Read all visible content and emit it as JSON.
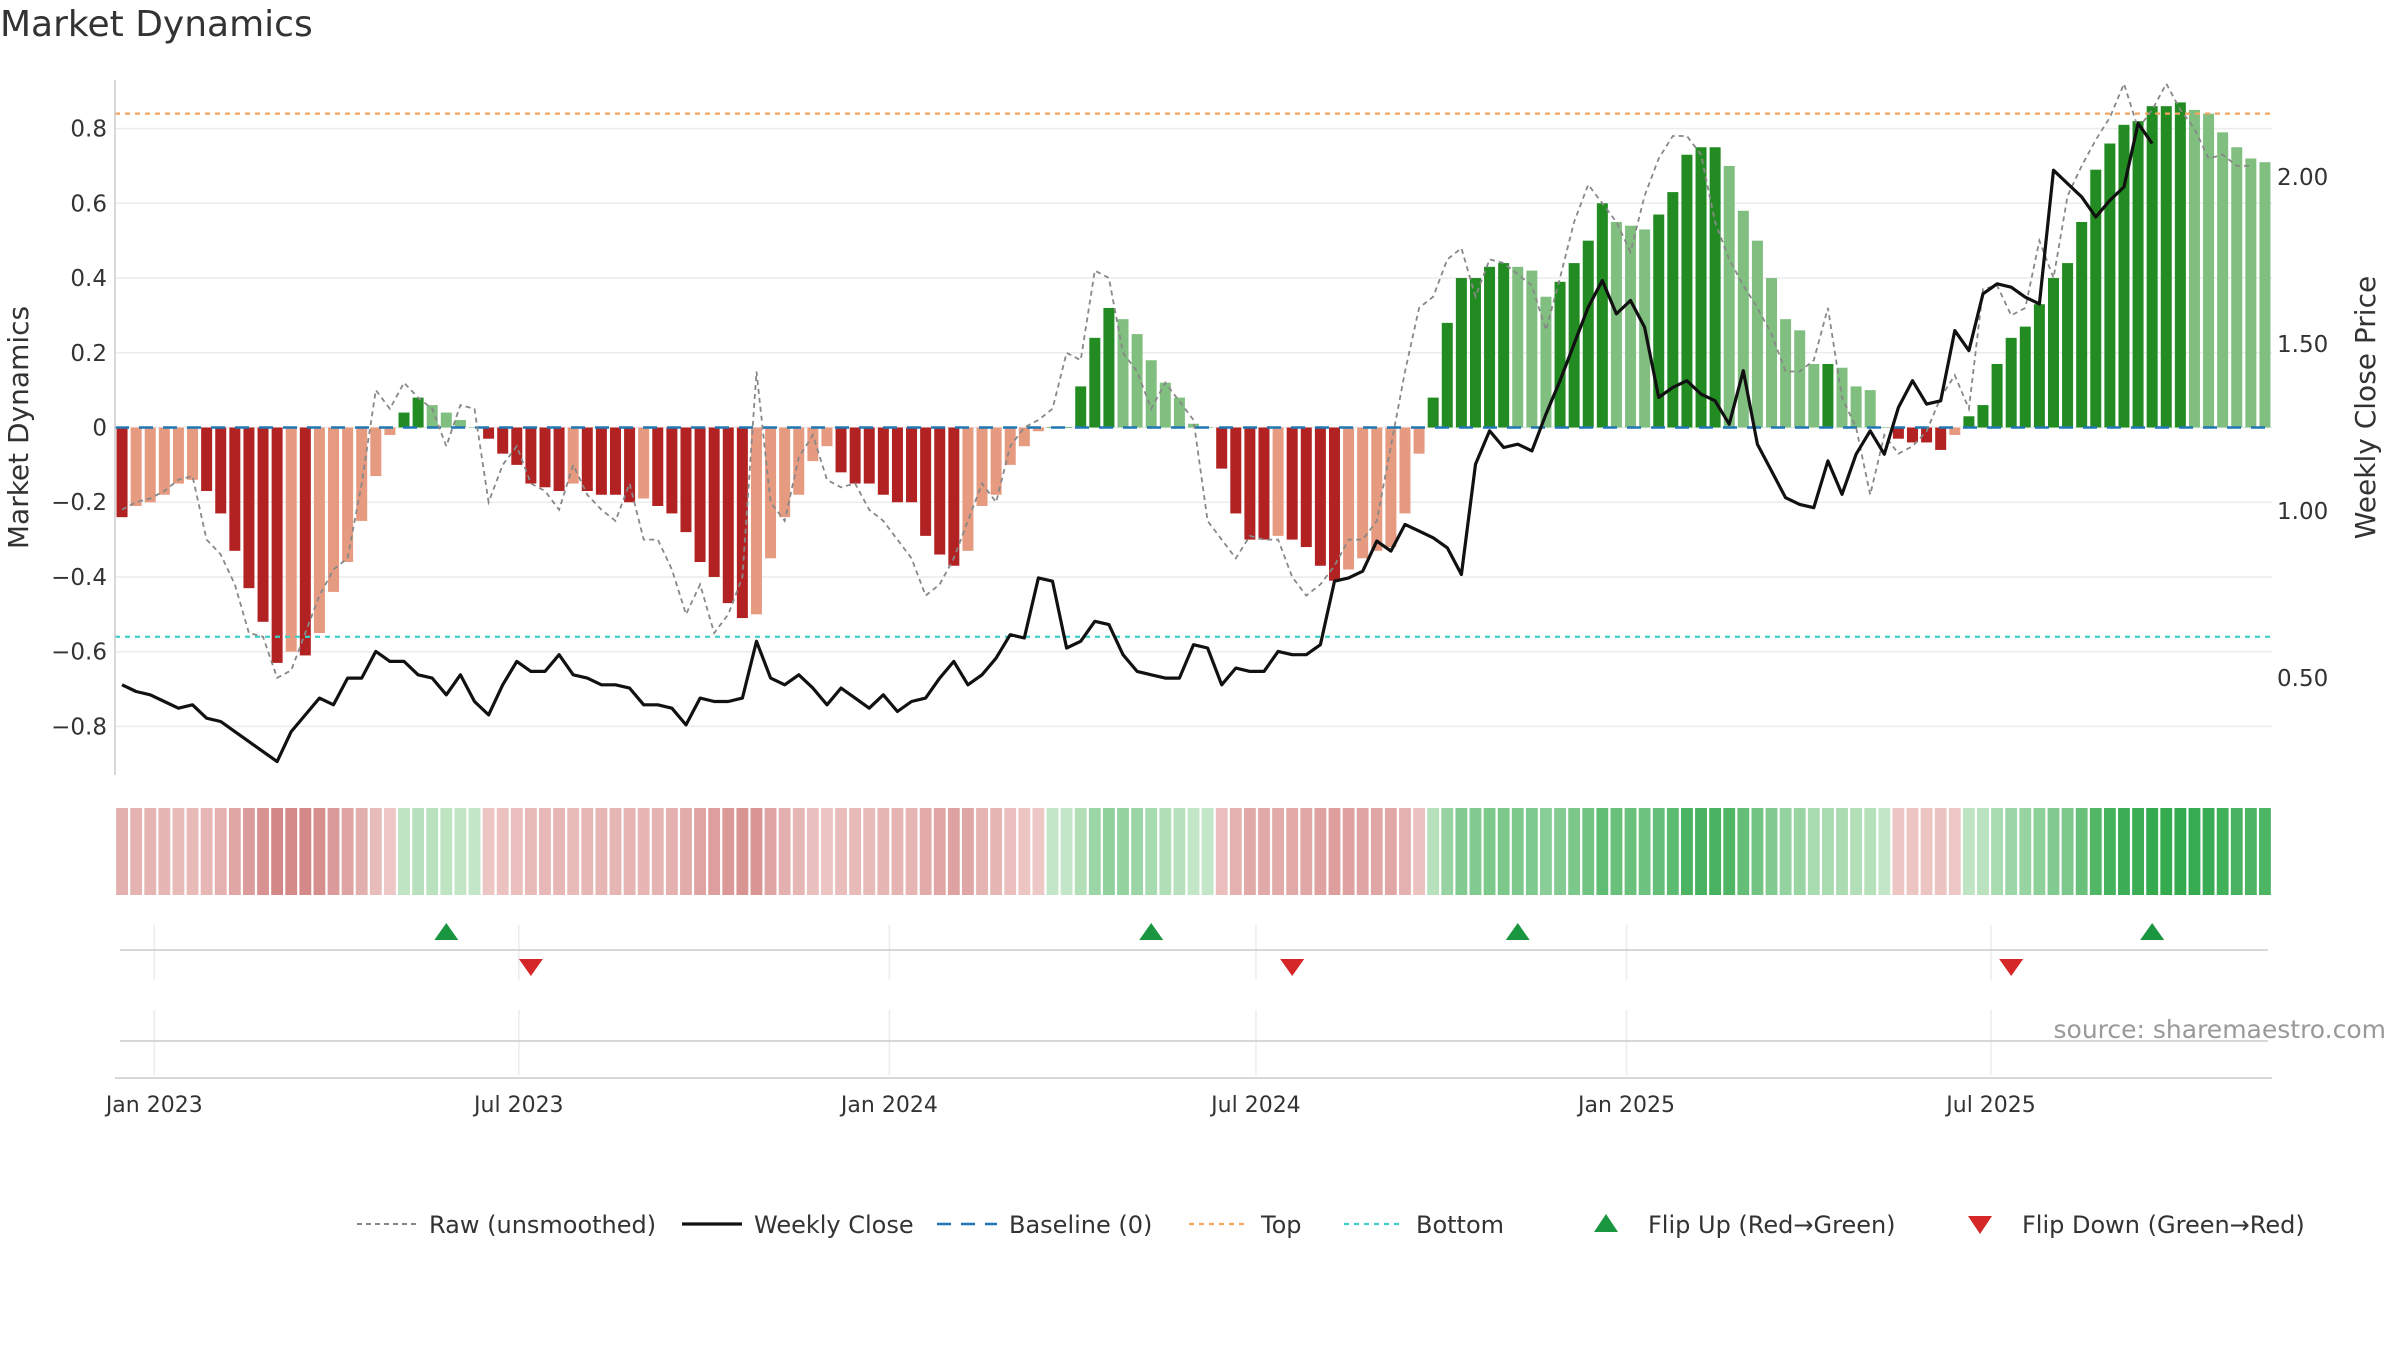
{
  "title": "Market Dynamics",
  "source": "source: sharemaestro.com",
  "colors": {
    "strong_red": "#b22222",
    "light_red": "#e69a80",
    "strong_green": "#228b22",
    "light_green": "#80bf80",
    "raw_line": "#888888",
    "close_line": "#111111",
    "baseline": "#1f77b4",
    "top": "#f4a460",
    "bottom": "#40d0c8",
    "flip_up": "#1a9641",
    "flip_down": "#d62728"
  },
  "chart_data": {
    "type": "bar",
    "ylabel": "Market Dynamics",
    "y2label": "Weekly Close Price",
    "ylim": [
      -0.93,
      0.93
    ],
    "y2lim": [
      0.21,
      2.29
    ],
    "yticks": [
      "0.8",
      "0.6",
      "0.4",
      "0.2",
      "0",
      "−0.2",
      "−0.4",
      "−0.6",
      "−0.8"
    ],
    "y2ticks": [
      "2.00",
      "1.50",
      "1.00",
      "0.50"
    ],
    "xticks": [
      "Jan 2023",
      "Jul 2023",
      "Jan 2024",
      "Jul 2024",
      "Jan 2025",
      "Jul 2025"
    ],
    "x_start": "2022-12-16",
    "x_interval": "weekly",
    "top_level": 0.84,
    "bottom_level": -0.56,
    "baseline_level": 0,
    "legend": [
      "Raw (unsmoothed)",
      "Weekly Close",
      "Baseline (0)",
      "Top",
      "Bottom",
      "Flip Up (Red→Green)",
      "Flip Down (Green→Red)"
    ],
    "flip_up_weeks": [
      23,
      73,
      99,
      144
    ],
    "flip_down_weeks": [
      29,
      83,
      134
    ],
    "series": [
      {
        "name": "Market Dynamics",
        "values": [
          -0.24,
          -0.21,
          -0.2,
          -0.18,
          -0.15,
          -0.14,
          -0.17,
          -0.23,
          -0.33,
          -0.43,
          -0.52,
          -0.63,
          -0.6,
          -0.61,
          -0.55,
          -0.44,
          -0.36,
          -0.25,
          -0.13,
          -0.02,
          0.04,
          0.08,
          0.06,
          0.04,
          0.02,
          0.0,
          -0.03,
          -0.07,
          -0.1,
          -0.15,
          -0.16,
          -0.17,
          -0.15,
          -0.17,
          -0.18,
          -0.18,
          -0.2,
          -0.19,
          -0.21,
          -0.23,
          -0.28,
          -0.36,
          -0.4,
          -0.47,
          -0.51,
          -0.5,
          -0.35,
          -0.24,
          -0.18,
          -0.09,
          -0.05,
          -0.12,
          -0.15,
          -0.15,
          -0.18,
          -0.2,
          -0.2,
          -0.29,
          -0.34,
          -0.37,
          -0.33,
          -0.21,
          -0.18,
          -0.1,
          -0.05,
          -0.01,
          0.0,
          0.0,
          0.11,
          0.24,
          0.32,
          0.29,
          0.25,
          0.18,
          0.12,
          0.08,
          0.01,
          0.0,
          -0.11,
          -0.23,
          -0.3,
          -0.3,
          -0.29,
          -0.3,
          -0.32,
          -0.37,
          -0.41,
          -0.38,
          -0.35,
          -0.33,
          -0.32,
          -0.23,
          -0.07,
          0.08,
          0.28,
          0.4,
          0.4,
          0.43,
          0.44,
          0.43,
          0.42,
          0.35,
          0.39,
          0.44,
          0.5,
          0.6,
          0.55,
          0.54,
          0.53,
          0.57,
          0.63,
          0.73,
          0.75,
          0.75,
          0.7,
          0.58,
          0.5,
          0.4,
          0.29,
          0.26,
          0.17,
          0.17,
          0.16,
          0.11,
          0.1,
          0.0,
          -0.03,
          -0.04,
          -0.04,
          -0.06,
          -0.02,
          0.03,
          0.06,
          0.17,
          0.24,
          0.27,
          0.33,
          0.4,
          0.44,
          0.55,
          0.69,
          0.76,
          0.81,
          0.82,
          0.86,
          0.86,
          0.87,
          0.85,
          0.84,
          0.79,
          0.75,
          0.72,
          0.71
        ]
      },
      {
        "name": "Raw (unsmoothed)",
        "values": [
          -0.22,
          -0.2,
          -0.19,
          -0.17,
          -0.14,
          -0.13,
          -0.3,
          -0.34,
          -0.42,
          -0.55,
          -0.56,
          -0.67,
          -0.65,
          -0.55,
          -0.45,
          -0.38,
          -0.35,
          -0.15,
          0.1,
          0.05,
          0.12,
          0.08,
          0.05,
          -0.05,
          0.06,
          0.05,
          -0.2,
          -0.1,
          -0.05,
          -0.15,
          -0.17,
          -0.22,
          -0.1,
          -0.18,
          -0.22,
          -0.25,
          -0.15,
          -0.3,
          -0.3,
          -0.38,
          -0.5,
          -0.42,
          -0.55,
          -0.5,
          -0.4,
          0.15,
          -0.2,
          -0.25,
          -0.08,
          -0.02,
          -0.14,
          -0.16,
          -0.15,
          -0.22,
          -0.25,
          -0.3,
          -0.35,
          -0.45,
          -0.42,
          -0.35,
          -0.25,
          -0.15,
          -0.2,
          -0.05,
          0.0,
          0.02,
          0.05,
          0.2,
          0.18,
          0.42,
          0.4,
          0.2,
          0.15,
          0.05,
          0.12,
          0.07,
          0.02,
          -0.25,
          -0.3,
          -0.35,
          -0.29,
          -0.3,
          -0.3,
          -0.4,
          -0.45,
          -0.42,
          -0.37,
          -0.3,
          -0.3,
          -0.25,
          -0.05,
          0.15,
          0.32,
          0.35,
          0.45,
          0.48,
          0.35,
          0.45,
          0.44,
          0.41,
          0.38,
          0.26,
          0.4,
          0.55,
          0.65,
          0.6,
          0.55,
          0.47,
          0.62,
          0.72,
          0.78,
          0.78,
          0.73,
          0.55,
          0.45,
          0.38,
          0.32,
          0.25,
          0.15,
          0.15,
          0.18,
          0.32,
          0.08,
          0.0,
          -0.18,
          -0.02,
          -0.07,
          -0.05,
          -0.01,
          0.08,
          0.14,
          0.05,
          0.37,
          0.38,
          0.3,
          0.32,
          0.5,
          0.4,
          0.62,
          0.7,
          0.77,
          0.83,
          0.92,
          0.8,
          0.85,
          0.92,
          0.85,
          0.8,
          0.72,
          0.73,
          0.7,
          0.7
        ]
      },
      {
        "name": "Weekly Close",
        "values": [
          0.48,
          0.46,
          0.45,
          0.43,
          0.41,
          0.42,
          0.38,
          0.37,
          0.34,
          0.31,
          0.28,
          0.25,
          0.34,
          0.39,
          0.44,
          0.42,
          0.5,
          0.5,
          0.58,
          0.55,
          0.55,
          0.51,
          0.5,
          0.45,
          0.51,
          0.43,
          0.39,
          0.48,
          0.55,
          0.52,
          0.52,
          0.57,
          0.51,
          0.5,
          0.48,
          0.48,
          0.47,
          0.42,
          0.42,
          0.41,
          0.36,
          0.44,
          0.43,
          0.43,
          0.44,
          0.61,
          0.5,
          0.48,
          0.51,
          0.47,
          0.42,
          0.47,
          0.44,
          0.41,
          0.45,
          0.4,
          0.43,
          0.44,
          0.5,
          0.55,
          0.48,
          0.51,
          0.56,
          0.63,
          0.62,
          0.8,
          0.79,
          0.59,
          0.61,
          0.67,
          0.66,
          0.57,
          0.52,
          0.51,
          0.5,
          0.5,
          0.6,
          0.59,
          0.48,
          0.53,
          0.52,
          0.52,
          0.58,
          0.57,
          0.57,
          0.6,
          0.79,
          0.8,
          0.82,
          0.91,
          0.88,
          0.96,
          0.94,
          0.92,
          0.89,
          0.81,
          1.14,
          1.24,
          1.19,
          1.2,
          1.18,
          1.29,
          1.39,
          1.5,
          1.61,
          1.69,
          1.59,
          1.63,
          1.55,
          1.34,
          1.37,
          1.39,
          1.35,
          1.33,
          1.26,
          1.42,
          1.2,
          1.12,
          1.04,
          1.02,
          1.01,
          1.15,
          1.05,
          1.17,
          1.24,
          1.17,
          1.31,
          1.39,
          1.32,
          1.33,
          1.54,
          1.48,
          1.65,
          1.68,
          1.67,
          1.64,
          1.62,
          2.02,
          1.98,
          1.94,
          1.88,
          1.93,
          1.97,
          2.16,
          2.1
        ]
      }
    ]
  }
}
